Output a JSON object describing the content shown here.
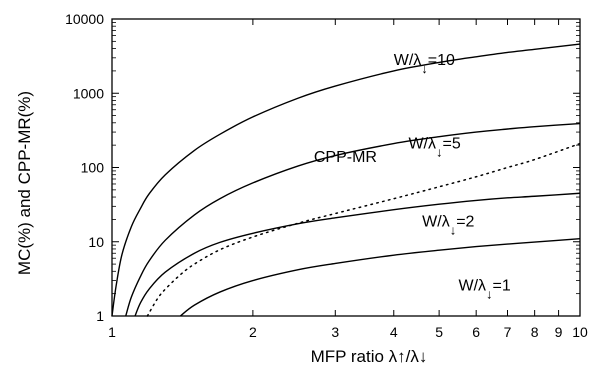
{
  "chart_data": {
    "type": "line",
    "xlabel": "MFP ratio  λ↑/λ↓",
    "ylabel": "MC(%) and CPP-MR(%)",
    "xscale": "log",
    "yscale": "log",
    "xlim": [
      1,
      10
    ],
    "ylim": [
      1,
      10000
    ],
    "grid": false,
    "x_ticks": [
      1,
      2,
      3,
      4,
      5,
      6,
      7,
      8,
      9,
      10
    ],
    "x_tick_labels": [
      "1",
      "2",
      "3",
      "4",
      "5",
      "6",
      "7",
      "8",
      "9",
      "10"
    ],
    "y_ticks": [
      1,
      10,
      100,
      1000,
      10000
    ],
    "y_tick_labels": [
      "1",
      "10",
      "100",
      "1000",
      "10000"
    ],
    "series": [
      {
        "name": "W/λ↓=10",
        "label_main": "W/λ",
        "label_sub": "↓",
        "label_tail": "=10",
        "style": "solid",
        "x": [
          1.0,
          1.02,
          1.05,
          1.1,
          1.15,
          1.2,
          1.3,
          1.5,
          1.7,
          2.0,
          2.5,
          3.0,
          4.0,
          5.0,
          6.0,
          7.0,
          8.0,
          10.0
        ],
        "y": [
          1.0,
          2.5,
          6.7,
          16,
          28,
          44,
          80,
          170,
          280,
          480,
          860,
          1250,
          2000,
          2600,
          3100,
          3550,
          3900,
          4600
        ]
      },
      {
        "name": "W/λ↓=5",
        "label_main": "W/λ",
        "label_sub": "↓",
        "label_tail": "=5",
        "style": "solid",
        "x": [
          1.07,
          1.1,
          1.15,
          1.2,
          1.3,
          1.5,
          1.7,
          2.0,
          2.5,
          3.0,
          4.0,
          5.0,
          6.0,
          7.0,
          8.0,
          10.0
        ],
        "y": [
          1.0,
          1.8,
          3.4,
          5.5,
          10.5,
          23,
          38,
          62,
          105,
          145,
          210,
          260,
          300,
          330,
          355,
          390
        ]
      },
      {
        "name": "CPP-MR",
        "label_main": "CPP-MR",
        "label_sub": "",
        "label_tail": "",
        "style": "dotted",
        "x": [
          1.19,
          1.25,
          1.3,
          1.4,
          1.5,
          1.7,
          2.0,
          2.5,
          3.0,
          4.0,
          5.0,
          6.0,
          7.0,
          8.0,
          10.0
        ],
        "y": [
          1.0,
          1.7,
          2.3,
          3.6,
          5.0,
          7.8,
          11.6,
          17.8,
          24,
          38,
          55,
          75,
          100,
          128,
          210
        ]
      },
      {
        "name": "W/λ↓=2",
        "label_main": "W/λ",
        "label_sub": "↓",
        "label_tail": "=2",
        "style": "solid",
        "x": [
          1.12,
          1.15,
          1.2,
          1.3,
          1.5,
          1.7,
          2.0,
          2.5,
          3.0,
          4.0,
          5.0,
          6.0,
          7.0,
          8.0,
          10.0
        ],
        "y": [
          1.0,
          1.5,
          2.3,
          3.9,
          7.0,
          9.8,
          13,
          17.5,
          21,
          27,
          32,
          36,
          39,
          41,
          45
        ]
      },
      {
        "name": "W/λ↓=1",
        "label_main": "W/λ",
        "label_sub": "↓",
        "label_tail": "=1",
        "style": "solid",
        "x": [
          1.4,
          1.5,
          1.7,
          2.0,
          2.5,
          3.0,
          4.0,
          5.0,
          6.0,
          7.0,
          8.0,
          10.0
        ],
        "y": [
          1.0,
          1.4,
          2.1,
          3.0,
          4.2,
          5.1,
          6.6,
          7.7,
          8.6,
          9.3,
          9.9,
          11
        ]
      }
    ],
    "curve_labels": [
      "W/λ↓=10",
      "W/λ↓=5",
      "CPP-MR",
      "W/λ↓=2",
      "W/λ↓=1"
    ]
  }
}
